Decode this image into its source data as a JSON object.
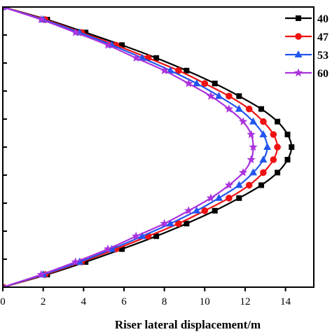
{
  "chart_data": {
    "type": "line",
    "xlabel": "Riser lateral displacement/m",
    "ylabel": "",
    "xlim": [
      0,
      15.4
    ],
    "ylim": [
      0,
      1
    ],
    "grid": false,
    "legend_placement": "top-right",
    "x_ticks": [
      0,
      2,
      4,
      6,
      8,
      10,
      12,
      14
    ],
    "y_ticks": [
      0,
      0.1,
      0.2,
      0.3,
      0.4,
      0.5,
      0.6,
      0.7,
      0.8,
      0.9,
      1.0
    ],
    "x_tick_labels": [
      "0",
      "2",
      "4",
      "6",
      "8",
      "10",
      "12",
      "14"
    ],
    "series": [
      {
        "name": "40",
        "color": "#000000",
        "marker": "square",
        "x": [
          0,
          2.2,
          4.1,
          5.9,
          7.6,
          9.1,
          10.5,
          11.7,
          12.8,
          13.6,
          14.1,
          14.3,
          14.1,
          13.6,
          12.8,
          11.7,
          10.5,
          9.1,
          7.6,
          5.9,
          4.1,
          2.2,
          0
        ],
        "y": [
          0,
          0.045,
          0.09,
          0.136,
          0.182,
          0.227,
          0.273,
          0.318,
          0.364,
          0.409,
          0.455,
          0.5,
          0.545,
          0.591,
          0.636,
          0.682,
          0.727,
          0.773,
          0.818,
          0.864,
          0.909,
          0.955,
          1.0
        ]
      },
      {
        "name": "47",
        "color": "#ee1111",
        "marker": "circle",
        "x": [
          0,
          2.1,
          3.9,
          5.6,
          7.2,
          8.7,
          10.0,
          11.2,
          12.2,
          12.9,
          13.4,
          13.6,
          13.4,
          12.9,
          12.2,
          11.2,
          10.0,
          8.7,
          7.2,
          5.6,
          3.9,
          2.1,
          0
        ],
        "y": [
          0,
          0.045,
          0.09,
          0.136,
          0.182,
          0.227,
          0.273,
          0.318,
          0.364,
          0.409,
          0.455,
          0.5,
          0.545,
          0.591,
          0.636,
          0.682,
          0.727,
          0.773,
          0.818,
          0.864,
          0.909,
          0.955,
          1.0
        ]
      },
      {
        "name": "53",
        "color": "#2255ee",
        "marker": "triangle",
        "x": [
          0,
          2.0,
          3.8,
          5.4,
          6.9,
          8.3,
          9.6,
          10.7,
          11.7,
          12.4,
          12.9,
          13.1,
          12.9,
          12.4,
          11.7,
          10.7,
          9.6,
          8.3,
          6.9,
          5.4,
          3.8,
          2.0,
          0
        ],
        "y": [
          0,
          0.045,
          0.09,
          0.136,
          0.182,
          0.227,
          0.273,
          0.318,
          0.364,
          0.409,
          0.455,
          0.5,
          0.545,
          0.591,
          0.636,
          0.682,
          0.727,
          0.773,
          0.818,
          0.864,
          0.909,
          0.955,
          1.0
        ]
      },
      {
        "name": "60",
        "color": "#aa33dd",
        "marker": "star",
        "x": [
          0,
          1.9,
          3.6,
          5.2,
          6.6,
          8.0,
          9.2,
          10.3,
          11.2,
          11.9,
          12.3,
          12.4,
          12.3,
          11.9,
          11.2,
          10.3,
          9.2,
          8.0,
          6.6,
          5.2,
          3.6,
          1.9,
          0
        ],
        "y": [
          0,
          0.045,
          0.09,
          0.136,
          0.182,
          0.227,
          0.273,
          0.318,
          0.364,
          0.409,
          0.455,
          0.5,
          0.545,
          0.591,
          0.636,
          0.682,
          0.727,
          0.773,
          0.818,
          0.864,
          0.909,
          0.955,
          1.0
        ]
      }
    ]
  }
}
